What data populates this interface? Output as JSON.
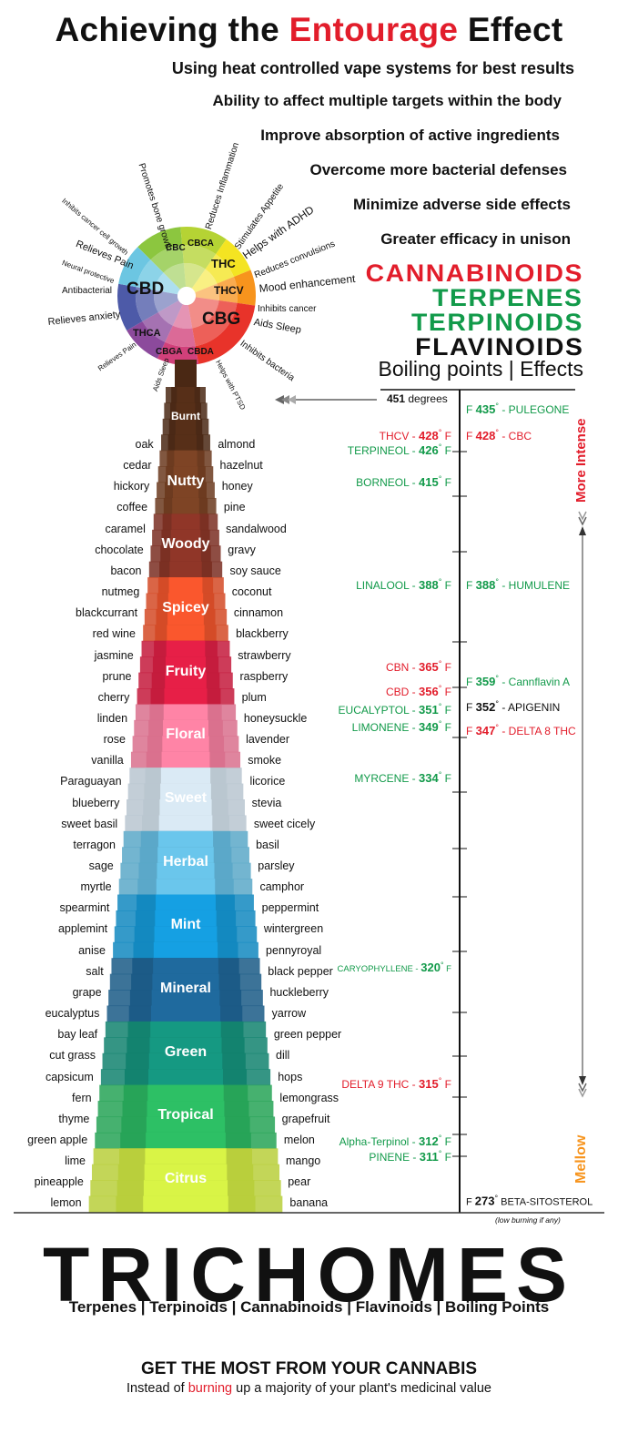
{
  "title": {
    "pre": "Achieving the ",
    "highlight": "Entourage",
    "post": " Effect"
  },
  "benefits": [
    "Using heat controlled vape systems for best results",
    "Ability to affect multiple targets within the body",
    "Improve absorption of active ingredients",
    "Overcome more bacterial defenses",
    "Minimize adverse side effects",
    "Greater efficacy in unison"
  ],
  "categories": [
    {
      "label": "CANNABINOIDS",
      "color": "#e21d2b"
    },
    {
      "label": "TERPENES",
      "color": "#129a4a"
    },
    {
      "label": "TERPINOIDS",
      "color": "#129a4a"
    },
    {
      "label": "FLAVINOIDS",
      "color": "#111111"
    }
  ],
  "boiling_effects": {
    "left": "Boiling points",
    "sep": "|",
    "right": "Effects"
  },
  "wheel": {
    "segments": [
      {
        "label": "CBC",
        "color": "#8cc63f"
      },
      {
        "label": "CBCA",
        "color": "#b5d334"
      },
      {
        "label": "THC",
        "color": "#f4e422"
      },
      {
        "label": "THCV",
        "color": "#f7941d"
      },
      {
        "label": "CBG",
        "color": "#e8332a"
      },
      {
        "label": "CBDA",
        "color": "#d1407a"
      },
      {
        "label": "CBGA",
        "color": "#8c4a9c"
      },
      {
        "label": "THCA",
        "color": "#4d5aa8"
      },
      {
        "label": "CBD",
        "color": "#6cc6e2"
      }
    ],
    "effects": [
      "Promotes bone growth",
      "Reduces Inflammation",
      "Stimulates Appetite",
      "Helps with ADHD",
      "Reduces convulsions",
      "Mood enhancement",
      "Inhibits cancer",
      "Aids Sleep",
      "Inhibits bacteria",
      "Helps with PTSD",
      "Aids Sleep",
      "Relieves Pain",
      "Relieves anxiety",
      "Antibacterial",
      "Neural protective",
      "Relieves Pain",
      "Inhibits cancer cell growth"
    ]
  },
  "scale": {
    "top_label": "451",
    "top_unit": "degrees",
    "more_intense": "More Intense",
    "mellow": "Mellow",
    "low_note": "(low burning if any)"
  },
  "tower": {
    "bands": [
      {
        "label": "Burnt",
        "color": "#4a2814"
      },
      {
        "label": "Nutty",
        "color": "#6b3a1f"
      },
      {
        "label": "Woody",
        "color": "#7a2e22"
      },
      {
        "label": "Spicey",
        "color": "#d44a26"
      },
      {
        "label": "Fruity",
        "color": "#c41a3c"
      },
      {
        "label": "Floral",
        "color": "#d9708d"
      },
      {
        "label": "Sweet",
        "color": "#b9c6d0"
      },
      {
        "label": "Herbal",
        "color": "#5aa8c8"
      },
      {
        "label": "Mint",
        "color": "#1288c0"
      },
      {
        "label": "Mineral",
        "color": "#1a5a86"
      },
      {
        "label": "Green",
        "color": "#12826e"
      },
      {
        "label": "Tropical",
        "color": "#26a356"
      },
      {
        "label": "Citrus",
        "color": "#b8cf3b"
      }
    ],
    "flavors": [
      {
        "left": "oak",
        "right": "almond"
      },
      {
        "left": "cedar",
        "right": "hazelnut"
      },
      {
        "left": "hickory",
        "right": "honey"
      },
      {
        "left": "coffee",
        "right": "pine"
      },
      {
        "left": "caramel",
        "right": "sandalwood"
      },
      {
        "left": "chocolate",
        "right": "gravy"
      },
      {
        "left": "bacon",
        "right": "soy sauce"
      },
      {
        "left": "nutmeg",
        "right": "coconut"
      },
      {
        "left": "blackcurrant",
        "right": "cinnamon"
      },
      {
        "left": "red wine",
        "right": "blackberry"
      },
      {
        "left": "jasmine",
        "right": "strawberry"
      },
      {
        "left": "prune",
        "right": "raspberry"
      },
      {
        "left": "cherry",
        "right": "plum"
      },
      {
        "left": "linden",
        "right": "honeysuckle"
      },
      {
        "left": "rose",
        "right": "lavender"
      },
      {
        "left": "vanilla",
        "right": "smoke"
      },
      {
        "left": "Paraguayan",
        "right": "licorice"
      },
      {
        "left": "blueberry",
        "right": "stevia"
      },
      {
        "left": "sweet basil",
        "right": "sweet cicely"
      },
      {
        "left": "terragon",
        "right": "basil"
      },
      {
        "left": "sage",
        "right": "parsley"
      },
      {
        "left": "myrtle",
        "right": "camphor"
      },
      {
        "left": "spearmint",
        "right": "peppermint"
      },
      {
        "left": "applemint",
        "right": "wintergreen"
      },
      {
        "left": "anise",
        "right": "pennyroyal"
      },
      {
        "left": "salt",
        "right": "black pepper"
      },
      {
        "left": "grape",
        "right": "huckleberry"
      },
      {
        "left": "eucalyptus",
        "right": "yarrow"
      },
      {
        "left": "bay leaf",
        "right": "green pepper"
      },
      {
        "left": "cut grass",
        "right": "dill"
      },
      {
        "left": "capsicum",
        "right": "hops"
      },
      {
        "left": "fern",
        "right": "lemongrass"
      },
      {
        "left": "thyme",
        "right": "grapefruit"
      },
      {
        "left": "green apple",
        "right": "melon"
      },
      {
        "left": "lime",
        "right": "mango"
      },
      {
        "left": "pineapple",
        "right": "pear"
      },
      {
        "left": "lemon",
        "right": "banana"
      }
    ]
  },
  "left_points": [
    {
      "name": "THCV",
      "temp": "428",
      "color": "#e21d2b"
    },
    {
      "name": "TERPINEOL",
      "temp": "426",
      "color": "#129a4a"
    },
    {
      "name": "BORNEOL",
      "temp": "415",
      "color": "#129a4a"
    },
    {
      "name": "LINALOOL",
      "temp": "388",
      "color": "#129a4a"
    },
    {
      "name": "CBN",
      "temp": "365",
      "color": "#e21d2b"
    },
    {
      "name": "CBD",
      "temp": "356",
      "color": "#e21d2b"
    },
    {
      "name": "EUCALYPTOL",
      "temp": "351",
      "color": "#129a4a"
    },
    {
      "name": "LIMONENE",
      "temp": "349",
      "color": "#129a4a"
    },
    {
      "name": "MYRCENE",
      "temp": "334",
      "color": "#129a4a"
    },
    {
      "name": "CARYOPHYLLENE",
      "temp": "320",
      "color": "#129a4a"
    },
    {
      "name": "DELTA 9 THC",
      "temp": "315",
      "color": "#e21d2b"
    },
    {
      "name": "Alpha-Terpinol",
      "temp": "312",
      "color": "#129a4a"
    },
    {
      "name": "PINENE",
      "temp": "311",
      "color": "#129a4a"
    }
  ],
  "right_points": [
    {
      "name": "PULEGONE",
      "temp": "435",
      "color": "#129a4a"
    },
    {
      "name": "CBC",
      "temp": "428",
      "color": "#e21d2b"
    },
    {
      "name": "HUMULENE",
      "temp": "388",
      "color": "#129a4a"
    },
    {
      "name": "Cannflavin A",
      "temp": "359",
      "color": "#129a4a"
    },
    {
      "name": "APIGENIN",
      "temp": "352",
      "color": "#111111"
    },
    {
      "name": "DELTA 8 THC",
      "temp": "347",
      "color": "#e21d2b"
    },
    {
      "name": "BETA-SITOSTEROL",
      "temp": "273",
      "color": "#111111"
    }
  ],
  "degree_sym": "°",
  "f_unit": "F",
  "trichomes": {
    "title": "TRICHOMES",
    "subtitle": "Terpenes | Terpinoids | Cannabinoids | Flavinoids | Boiling Points"
  },
  "footer": {
    "headline": "GET THE MOST FROM YOUR CANNABIS",
    "pre": "Instead of ",
    "highlight": "burning",
    "post": " up a majority of your plant's medicinal value"
  }
}
